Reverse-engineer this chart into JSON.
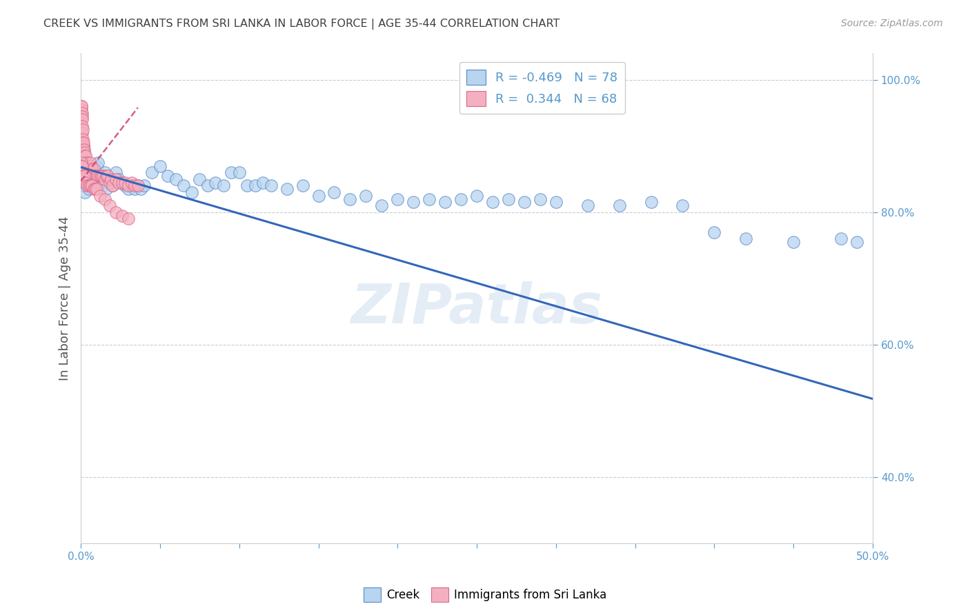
{
  "title": "CREEK VS IMMIGRANTS FROM SRI LANKA IN LABOR FORCE | AGE 35-44 CORRELATION CHART",
  "source": "Source: ZipAtlas.com",
  "ylabel": "In Labor Force | Age 35-44",
  "legend_labels": [
    "Creek",
    "Immigrants from Sri Lanka"
  ],
  "blue_R": -0.469,
  "blue_N": 78,
  "pink_R": 0.344,
  "pink_N": 68,
  "blue_color": "#b8d4ee",
  "pink_color": "#f4b0c0",
  "blue_edge_color": "#5588cc",
  "pink_edge_color": "#dd6688",
  "blue_line_color": "#3366bb",
  "pink_line_color": "#cc4466",
  "watermark": "ZIPatlas",
  "xlim": [
    0.0,
    0.5
  ],
  "ylim": [
    0.3,
    1.04
  ],
  "blue_scatter_x": [
    0.0005,
    0.001,
    0.0008,
    0.0012,
    0.0015,
    0.0018,
    0.002,
    0.0025,
    0.003,
    0.0035,
    0.004,
    0.005,
    0.006,
    0.007,
    0.008,
    0.009,
    0.01,
    0.011,
    0.012,
    0.013,
    0.014,
    0.015,
    0.016,
    0.018,
    0.02,
    0.022,
    0.024,
    0.026,
    0.028,
    0.03,
    0.032,
    0.034,
    0.036,
    0.038,
    0.04,
    0.045,
    0.05,
    0.055,
    0.06,
    0.065,
    0.07,
    0.075,
    0.08,
    0.085,
    0.09,
    0.095,
    0.1,
    0.105,
    0.11,
    0.115,
    0.12,
    0.13,
    0.14,
    0.15,
    0.16,
    0.17,
    0.18,
    0.19,
    0.2,
    0.21,
    0.22,
    0.23,
    0.24,
    0.25,
    0.26,
    0.27,
    0.28,
    0.29,
    0.3,
    0.32,
    0.34,
    0.36,
    0.38,
    0.4,
    0.42,
    0.45,
    0.48,
    0.49
  ],
  "blue_scatter_y": [
    0.875,
    0.87,
    0.86,
    0.855,
    0.84,
    0.9,
    0.85,
    0.83,
    0.855,
    0.87,
    0.845,
    0.835,
    0.84,
    0.855,
    0.84,
    0.86,
    0.87,
    0.875,
    0.855,
    0.845,
    0.84,
    0.86,
    0.835,
    0.85,
    0.84,
    0.86,
    0.85,
    0.845,
    0.84,
    0.835,
    0.84,
    0.835,
    0.84,
    0.835,
    0.84,
    0.86,
    0.87,
    0.855,
    0.85,
    0.84,
    0.83,
    0.85,
    0.84,
    0.845,
    0.84,
    0.86,
    0.86,
    0.84,
    0.84,
    0.845,
    0.84,
    0.835,
    0.84,
    0.825,
    0.83,
    0.82,
    0.825,
    0.81,
    0.82,
    0.815,
    0.82,
    0.815,
    0.82,
    0.825,
    0.815,
    0.82,
    0.815,
    0.82,
    0.815,
    0.81,
    0.81,
    0.815,
    0.81,
    0.77,
    0.76,
    0.755,
    0.76,
    0.755
  ],
  "pink_scatter_x": [
    0.0002,
    0.0003,
    0.0004,
    0.0005,
    0.0006,
    0.0007,
    0.0008,
    0.0009,
    0.001,
    0.0011,
    0.0012,
    0.0013,
    0.0015,
    0.0016,
    0.0018,
    0.002,
    0.0022,
    0.0025,
    0.003,
    0.0035,
    0.004,
    0.0045,
    0.005,
    0.006,
    0.007,
    0.008,
    0.009,
    0.01,
    0.011,
    0.012,
    0.013,
    0.014,
    0.015,
    0.016,
    0.017,
    0.018,
    0.019,
    0.02,
    0.022,
    0.024,
    0.026,
    0.028,
    0.03,
    0.032,
    0.034,
    0.036,
    0.0003,
    0.0005,
    0.0007,
    0.001,
    0.0013,
    0.0016,
    0.002,
    0.0025,
    0.003,
    0.004,
    0.005,
    0.006,
    0.007,
    0.008,
    0.009,
    0.01,
    0.012,
    0.015,
    0.018,
    0.022,
    0.026,
    0.03
  ],
  "pink_scatter_y": [
    0.96,
    0.955,
    0.96,
    0.945,
    0.95,
    0.945,
    0.94,
    0.93,
    0.92,
    0.925,
    0.91,
    0.905,
    0.9,
    0.895,
    0.905,
    0.895,
    0.89,
    0.885,
    0.885,
    0.875,
    0.875,
    0.87,
    0.87,
    0.875,
    0.865,
    0.865,
    0.855,
    0.855,
    0.855,
    0.855,
    0.855,
    0.855,
    0.85,
    0.855,
    0.855,
    0.845,
    0.85,
    0.84,
    0.85,
    0.845,
    0.845,
    0.845,
    0.84,
    0.845,
    0.84,
    0.84,
    0.875,
    0.87,
    0.87,
    0.86,
    0.855,
    0.855,
    0.85,
    0.855,
    0.845,
    0.84,
    0.84,
    0.84,
    0.84,
    0.835,
    0.835,
    0.835,
    0.825,
    0.82,
    0.81,
    0.8,
    0.795,
    0.79
  ],
  "blue_trend_x": [
    0.0,
    0.5
  ],
  "blue_trend_y": [
    0.868,
    0.518
  ],
  "pink_trend_x": [
    0.0,
    0.036
  ],
  "pink_trend_y": [
    0.847,
    0.958
  ],
  "xticks": [
    0.0,
    0.05,
    0.1,
    0.15,
    0.2,
    0.25,
    0.3,
    0.35,
    0.4,
    0.45,
    0.5
  ],
  "xtick_labels_show": {
    "0.0": "0.0%",
    "0.5": "50.0%"
  },
  "yticks": [
    0.4,
    0.6,
    0.8,
    1.0
  ],
  "ytick_labels": [
    "40.0%",
    "60.0%",
    "80.0%",
    "100.0%"
  ],
  "grid_color": "#cccccc",
  "bg_color": "#ffffff",
  "title_color": "#404040",
  "axis_color": "#5599cc",
  "tick_color": "#5599cc"
}
